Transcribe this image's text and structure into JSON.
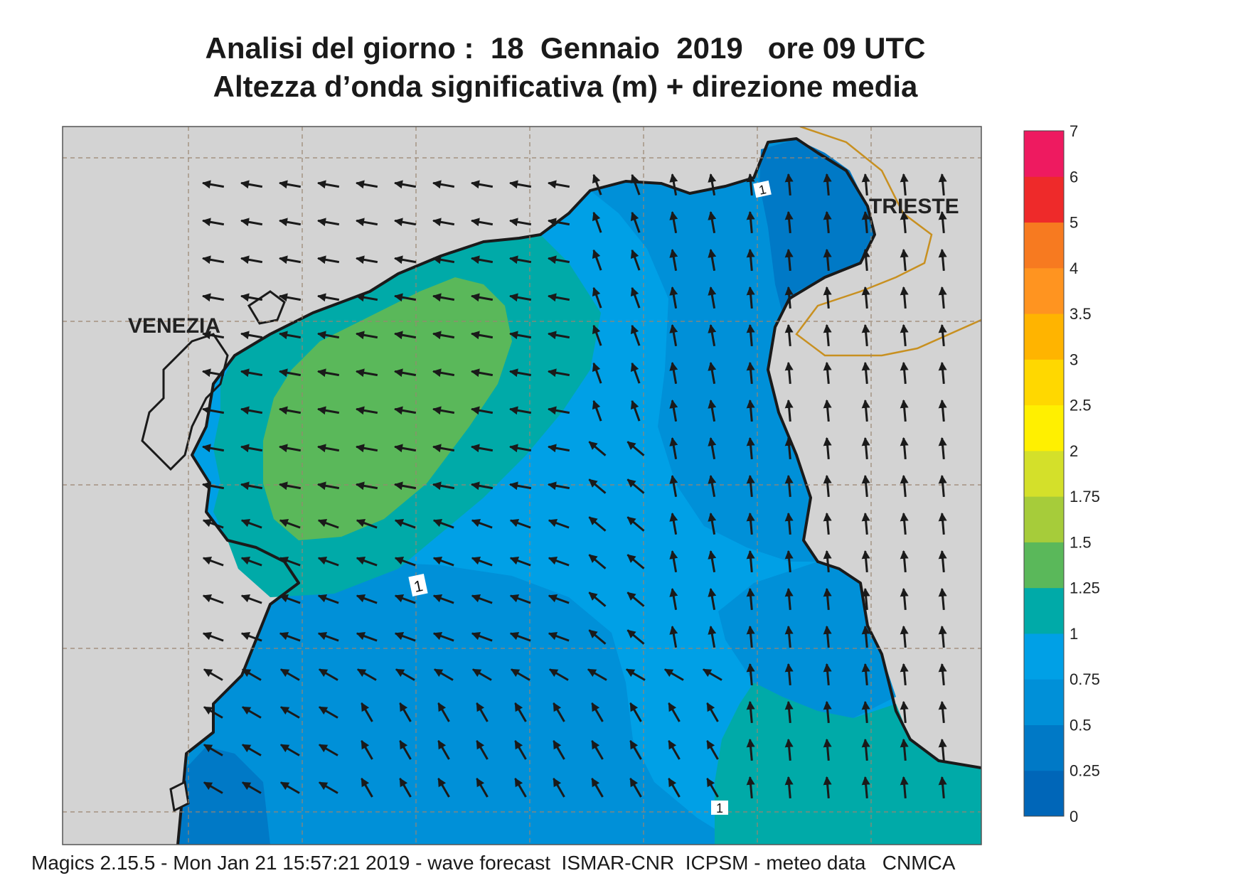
{
  "title": {
    "line1": "Analisi del giorno :  18  Gennaio  2019   ore 09 UTC",
    "line2": "Altezza d’onda significativa (m) + direzione media"
  },
  "footer": {
    "text": "Magics 2.15.5 - Mon Jan 21 15:57:21 2019 - wave forecast  ISMAR-CNR  ICPSM - meteo data   CNMCA"
  },
  "cities": [
    {
      "name": "VENEZIA"
    },
    {
      "name": "TRIESTE"
    }
  ],
  "contour_labels": [
    "1",
    "1",
    "1"
  ],
  "colorbar": {
    "levels": [
      "0",
      "0.25",
      "0.5",
      "0.75",
      "1",
      "1.25",
      "1.5",
      "1.75",
      "2",
      "2.5",
      "3",
      "3.5",
      "4",
      "5",
      "6",
      "7"
    ],
    "colors": [
      "#0066b8",
      "#0079c6",
      "#0090d8",
      "#00a0e6",
      "#00aaa8",
      "#5ab85a",
      "#a6cc3a",
      "#d4e02a",
      "#fff000",
      "#ffd800",
      "#ffb400",
      "#ff9420",
      "#f77a20",
      "#ee2a2a",
      "#ee1a60"
    ]
  },
  "colors": {
    "land": "#d3d3d3",
    "coast": "#1a1a1a",
    "border": "#c89020",
    "grid": "#9a8570",
    "arrow": "#1a1a1a"
  }
}
